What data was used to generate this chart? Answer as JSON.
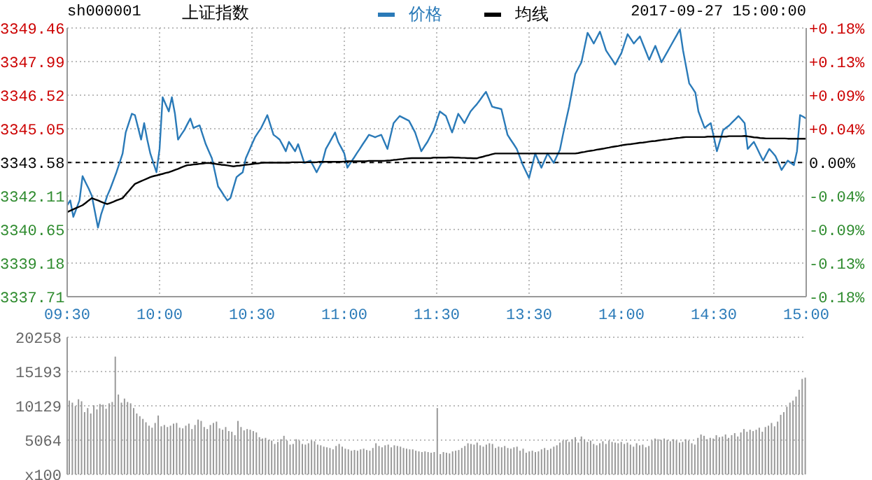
{
  "chart_data": [
    {
      "type": "line",
      "title": "上证指数",
      "annotations": [
        "sh000001",
        "2017-09-27 15:00:00"
      ],
      "legend": "top",
      "grid": true,
      "marker": "none",
      "line_style": "solid",
      "categories": [
        "09:30",
        null,
        null,
        null,
        null,
        null,
        null,
        null,
        null,
        null,
        null,
        null,
        null,
        null,
        null,
        null,
        null,
        null,
        null,
        null,
        null,
        null,
        null,
        null,
        null,
        null,
        null,
        null,
        null,
        null,
        "10:00",
        null,
        null,
        null,
        null,
        null,
        null,
        null,
        null,
        null,
        null,
        null,
        null,
        null,
        null,
        null,
        null,
        null,
        null,
        null,
        null,
        null,
        null,
        null,
        null,
        null,
        null,
        null,
        null,
        null,
        "10:30",
        null,
        null,
        null,
        null,
        null,
        null,
        null,
        null,
        null,
        null,
        null,
        null,
        null,
        null,
        null,
        null,
        null,
        null,
        null,
        null,
        null,
        null,
        null,
        null,
        null,
        null,
        null,
        null,
        null,
        "11:00",
        null,
        null,
        null,
        null,
        null,
        null,
        null,
        null,
        null,
        null,
        null,
        null,
        null,
        null,
        null,
        null,
        null,
        null,
        null,
        null,
        null,
        null,
        null,
        null,
        null,
        null,
        null,
        null,
        null,
        "11:30",
        null,
        null,
        null,
        null,
        null,
        null,
        null,
        null,
        null,
        null,
        null,
        null,
        null,
        null,
        null,
        null,
        null,
        null,
        null,
        null,
        null,
        null,
        null,
        null,
        null,
        null,
        null,
        null,
        null,
        "13:30",
        null,
        null,
        null,
        null,
        null,
        null,
        null,
        null,
        null,
        null,
        null,
        null,
        null,
        null,
        null,
        null,
        null,
        null,
        null,
        null,
        null,
        null,
        null,
        null,
        null,
        null,
        null,
        null,
        null,
        "14:00",
        null,
        null,
        null,
        null,
        null,
        null,
        null,
        null,
        null,
        null,
        null,
        null,
        null,
        null,
        null,
        null,
        null,
        null,
        null,
        null,
        null,
        null,
        null,
        null,
        null,
        null,
        null,
        null,
        null,
        "14:30",
        null,
        null,
        null,
        null,
        null,
        null,
        null,
        null,
        null,
        null,
        null,
        null,
        null,
        null,
        null,
        null,
        null,
        null,
        null,
        null,
        null,
        null,
        null,
        null,
        null,
        null,
        null,
        null,
        null,
        "15:00"
      ],
      "ylim": [
        3337.71,
        3349.46
      ],
      "yticks": [
        3337.71,
        3339.18,
        3340.65,
        3342.11,
        3343.58,
        3345.05,
        3346.52,
        3347.99,
        3349.46
      ],
      "y2lim": [
        -0.176,
        0.176
      ],
      "y2ticks": [
        {
          "value": -0.176,
          "label": "-0.18%"
        },
        {
          "value": -0.132,
          "label": "-0.13%"
        },
        {
          "value": -0.088,
          "label": "-0.09%"
        },
        {
          "value": -0.044,
          "label": "-0.04%"
        },
        {
          "value": 0,
          "label": "0.00%"
        },
        {
          "value": 0.044,
          "label": "+0.04%"
        },
        {
          "value": 0.088,
          "label": "+0.09%"
        },
        {
          "value": 0.132,
          "label": "+0.13%"
        },
        {
          "value": 0.176,
          "label": "+0.18%"
        }
      ],
      "ref_lines": [
        {
          "axis": "y",
          "value": 3343.58,
          "color": "#000000",
          "line_style": "dashed"
        }
      ],
      "series": [
        {
          "name": "价格",
          "color": "#2a7ab8",
          "values": [
            3341.71,
            3341.92,
            3341.2,
            3341.56,
            3341.92,
            3342.98,
            3342.7,
            3342.43,
            3342.12,
            3341.43,
            3340.73,
            3341.3,
            3341.71,
            3342.12,
            3342.43,
            3342.79,
            3343.15,
            3343.56,
            3343.97,
            3344.89,
            3345.3,
            3345.71,
            3345.65,
            3345.12,
            3344.58,
            3345.3,
            3344.58,
            3343.97,
            3343.56,
            3343.15,
            3344.17,
            3346.43,
            3346.12,
            3345.81,
            3346.43,
            3345.71,
            3344.58,
            3344.79,
            3344.99,
            3345.25,
            3345.5,
            3345.09,
            3345.15,
            3345.2,
            3344.79,
            3344.38,
            3344.07,
            3343.76,
            3343.15,
            3342.53,
            3342.33,
            3342.12,
            3341.92,
            3342.02,
            3342.48,
            3342.94,
            3343.05,
            3343.15,
            3343.76,
            3344.07,
            3344.38,
            3344.68,
            3344.89,
            3345.09,
            3345.37,
            3345.65,
            3345.22,
            3344.79,
            3344.69,
            3344.58,
            3344.33,
            3344.07,
            3344.48,
            3344.28,
            3344.07,
            3344.38,
            3343.97,
            3343.56,
            3343.61,
            3343.66,
            3343.41,
            3343.15,
            3343.41,
            3343.66,
            3344.17,
            3344.41,
            3344.65,
            3344.89,
            3344.48,
            3344.23,
            3343.97,
            3343.35,
            3343.56,
            3343.76,
            3343.97,
            3344.17,
            3344.38,
            3344.58,
            3344.79,
            3344.74,
            3344.68,
            3344.74,
            3344.79,
            3344.48,
            3344.17,
            3344.74,
            3345.3,
            3345.46,
            3345.61,
            3345.54,
            3345.47,
            3345.4,
            3345.15,
            3344.89,
            3344.48,
            3344.07,
            3344.28,
            3344.48,
            3344.74,
            3344.99,
            3345.4,
            3345.81,
            3345.71,
            3345.61,
            3345.25,
            3344.89,
            3345.3,
            3345.71,
            3345.51,
            3345.3,
            3345.56,
            3345.81,
            3345.97,
            3346.12,
            3346.3,
            3346.49,
            3346.67,
            3346.35,
            3346.02,
            3345.98,
            3345.95,
            3345.91,
            3345.35,
            3344.79,
            3344.58,
            3344.38,
            3344.17,
            3343.82,
            3343.46,
            3343.18,
            3342.9,
            3343.44,
            3343.97,
            3343.66,
            3343.35,
            3343.66,
            3343.97,
            3343.77,
            3343.56,
            3343.85,
            3344.13,
            3344.79,
            3345.41,
            3346.02,
            3346.74,
            3347.45,
            3347.71,
            3347.96,
            3348.61,
            3349.25,
            3349.02,
            3348.78,
            3349.04,
            3349.3,
            3348.89,
            3348.48,
            3348.27,
            3348.07,
            3347.86,
            3348.12,
            3348.37,
            3348.78,
            3349.19,
            3348.99,
            3348.78,
            3348.94,
            3349.09,
            3348.75,
            3348.41,
            3348.07,
            3348.38,
            3348.68,
            3348.32,
            3347.96,
            3348.2,
            3348.44,
            3348.68,
            3348.92,
            3349.16,
            3349.4,
            3348.48,
            3347.76,
            3347.04,
            3346.84,
            3346.63,
            3345.81,
            3345.45,
            3345.09,
            3345.2,
            3345.3,
            3344.69,
            3344.07,
            3344.53,
            3344.99,
            3345.1,
            3345.2,
            3345.34,
            3345.47,
            3345.61,
            3345.46,
            3345.3,
            3344.17,
            3344.33,
            3344.48,
            3344.21,
            3343.93,
            3343.66,
            3343.92,
            3344.17,
            3344.02,
            3343.86,
            3343.56,
            3343.25,
            3343.46,
            3343.66,
            3343.56,
            3343.46,
            3344.07,
            3345.65,
            3345.58,
            3345.5
          ]
        },
        {
          "name": "均线",
          "color": "#000000",
          "values": [
            3341.41,
            3341.47,
            3341.53,
            3341.59,
            3341.65,
            3341.71,
            3341.81,
            3341.92,
            3342.02,
            3341.97,
            3341.92,
            3341.86,
            3341.81,
            3341.76,
            3341.81,
            3341.86,
            3341.92,
            3341.97,
            3342.02,
            3342.18,
            3342.33,
            3342.49,
            3342.64,
            3342.7,
            3342.76,
            3342.82,
            3342.88,
            3342.94,
            3342.98,
            3343.01,
            3343.05,
            3343.08,
            3343.12,
            3343.15,
            3343.2,
            3343.25,
            3343.3,
            3343.36,
            3343.41,
            3343.46,
            3343.47,
            3343.49,
            3343.5,
            3343.52,
            3343.53,
            3343.55,
            3343.56,
            3343.54,
            3343.52,
            3343.5,
            3343.48,
            3343.47,
            3343.45,
            3343.43,
            3343.41,
            3343.43,
            3343.44,
            3343.46,
            3343.48,
            3343.49,
            3343.51,
            3343.53,
            3343.54,
            3343.56,
            3343.57,
            3343.57,
            3343.57,
            3343.57,
            3343.57,
            3343.57,
            3343.57,
            3343.57,
            3343.57,
            3343.59,
            3343.59,
            3343.59,
            3343.59,
            3343.59,
            3343.59,
            3343.59,
            3343.59,
            3343.59,
            3343.61,
            3343.61,
            3343.61,
            3343.61,
            3343.61,
            3343.61,
            3343.61,
            3343.61,
            3343.62,
            3343.63,
            3343.63,
            3343.63,
            3343.63,
            3343.63,
            3343.63,
            3343.63,
            3343.65,
            3343.65,
            3343.65,
            3343.65,
            3343.65,
            3343.65,
            3343.66,
            3343.67,
            3343.69,
            3343.7,
            3343.72,
            3343.73,
            3343.75,
            3343.76,
            3343.77,
            3343.77,
            3343.77,
            3343.77,
            3343.77,
            3343.77,
            3343.77,
            3343.79,
            3343.79,
            3343.79,
            3343.79,
            3343.79,
            3343.8,
            3343.8,
            3343.79,
            3343.79,
            3343.78,
            3343.78,
            3343.77,
            3343.77,
            3343.76,
            3343.76,
            3343.8,
            3343.83,
            3343.87,
            3343.9,
            3343.94,
            3343.97,
            3343.97,
            3343.97,
            3343.97,
            3343.97,
            3343.97,
            3343.97,
            3343.97,
            3343.97,
            3343.97,
            3343.97,
            3343.97,
            3343.97,
            3343.97,
            3343.97,
            3343.97,
            3343.97,
            3343.97,
            3343.97,
            3343.97,
            3343.97,
            3343.97,
            3343.97,
            3343.97,
            3343.97,
            3343.97,
            3343.97,
            3343.99,
            3344.02,
            3344.04,
            3344.07,
            3344.09,
            3344.11,
            3344.14,
            3344.16,
            3344.18,
            3344.21,
            3344.23,
            3344.26,
            3344.28,
            3344.3,
            3344.33,
            3344.35,
            3344.37,
            3344.38,
            3344.4,
            3344.42,
            3344.44,
            3344.45,
            3344.47,
            3344.49,
            3344.51,
            3344.52,
            3344.54,
            3344.56,
            3344.58,
            3344.59,
            3344.61,
            3344.63,
            3344.65,
            3344.66,
            3344.68,
            3344.69,
            3344.69,
            3344.69,
            3344.69,
            3344.69,
            3344.69,
            3344.69,
            3344.71,
            3344.71,
            3344.71,
            3344.71,
            3344.71,
            3344.71,
            3344.71,
            3344.73,
            3344.73,
            3344.73,
            3344.73,
            3344.73,
            3344.74,
            3344.72,
            3344.7,
            3344.68,
            3344.67,
            3344.65,
            3344.64,
            3344.63,
            3344.63,
            3344.63,
            3344.63,
            3344.63,
            3344.63,
            3344.63,
            3344.62,
            3344.62,
            3344.62,
            3344.62,
            3344.62,
            3344.62,
            3344.62
          ]
        }
      ]
    },
    {
      "type": "bar",
      "grid": "y",
      "tick_labels": "y",
      "color": "#999999",
      "categories": [
        null,
        null,
        null,
        null,
        null,
        null,
        null,
        null,
        null,
        null,
        null,
        null,
        null,
        null,
        null,
        null,
        null,
        null,
        null,
        null,
        null,
        null,
        null,
        null,
        null,
        null,
        null,
        null,
        null,
        null,
        null,
        null,
        null,
        null,
        null,
        null,
        null,
        null,
        null,
        null,
        null,
        null,
        null,
        null,
        null,
        null,
        null,
        null,
        null,
        null,
        null,
        null,
        null,
        null,
        null,
        null,
        null,
        null,
        null,
        null,
        null,
        null,
        null,
        null,
        null,
        null,
        null,
        null,
        null,
        null,
        null,
        null,
        null,
        null,
        null,
        null,
        null,
        null,
        null,
        null,
        null,
        null,
        null,
        null,
        null,
        null,
        null,
        null,
        null,
        null,
        null,
        null,
        null,
        null,
        null,
        null,
        null,
        null,
        null,
        null,
        null,
        null,
        null,
        null,
        null,
        null,
        null,
        null,
        null,
        null,
        null,
        null,
        null,
        null,
        null,
        null,
        null,
        null,
        null,
        null,
        null,
        null,
        null,
        null,
        null,
        null,
        null,
        null,
        null,
        null,
        null,
        null,
        null,
        null,
        null,
        null,
        null,
        null,
        null,
        null,
        null,
        null,
        null,
        null,
        null,
        null,
        null,
        null,
        null,
        null,
        null,
        null,
        null,
        null,
        null,
        null,
        null,
        null,
        null,
        null,
        null,
        null,
        null,
        null,
        null,
        null,
        null,
        null,
        null,
        null,
        null,
        null,
        null,
        null,
        null,
        null,
        null,
        null,
        null,
        null,
        null,
        null,
        null,
        null,
        null,
        null,
        null,
        null,
        null,
        null,
        null,
        null,
        null,
        null,
        null,
        null,
        null,
        null,
        null,
        null,
        null,
        null,
        null,
        null,
        null,
        null,
        null,
        null,
        null,
        null,
        null,
        null,
        null,
        null,
        null,
        null,
        null,
        null,
        null,
        null,
        null,
        null,
        null,
        null,
        null,
        null,
        null,
        null,
        null,
        null,
        null,
        null,
        null,
        null,
        null,
        null,
        null,
        null,
        null,
        null,
        null
      ],
      "ylim": [
        0,
        20258
      ],
      "yticks": [
        {
          "value": 0,
          "label": "x100"
        },
        5064,
        10129,
        15193,
        20258
      ],
      "values": [
        10900,
        10600,
        10100,
        11100,
        10800,
        9200,
        9800,
        9000,
        10200,
        9600,
        10400,
        10300,
        9700,
        10500,
        10700,
        17400,
        11800,
        10600,
        11200,
        10700,
        10500,
        9800,
        9000,
        8600,
        8200,
        7700,
        7200,
        6900,
        7600,
        8700,
        7100,
        7300,
        7000,
        7200,
        7500,
        7600,
        6900,
        6800,
        7200,
        7500,
        6700,
        7300,
        8100,
        7900,
        7000,
        6700,
        7300,
        7600,
        7800,
        6800,
        6600,
        7000,
        6400,
        6300,
        5800,
        7900,
        7000,
        6500,
        6700,
        6600,
        6400,
        6200,
        5500,
        5300,
        5400,
        5100,
        5000,
        4500,
        4800,
        5200,
        5700,
        5000,
        4400,
        4500,
        5200,
        5000,
        4500,
        4400,
        4600,
        5000,
        4900,
        4400,
        4300,
        4100,
        4000,
        3900,
        3700,
        4200,
        4500,
        4100,
        3800,
        3700,
        3500,
        3600,
        3500,
        3700,
        3800,
        3600,
        3500,
        3900,
        4600,
        4200,
        4000,
        4300,
        4400,
        4000,
        4300,
        4200,
        4100,
        3900,
        3800,
        3700,
        3700,
        3500,
        3400,
        3300,
        3400,
        3300,
        3200,
        3300,
        9800,
        3000,
        3300,
        3200,
        3100,
        3400,
        3500,
        3600,
        3900,
        4200,
        4600,
        4500,
        4400,
        4700,
        4300,
        4100,
        4400,
        4600,
        4500,
        3900,
        4100,
        4000,
        4200,
        3900,
        3800,
        4000,
        4100,
        3500,
        3800,
        3200,
        3400,
        3500,
        3300,
        3400,
        3700,
        3900,
        3600,
        3800,
        4100,
        4300,
        4700,
        5000,
        5100,
        4800,
        5200,
        5500,
        4700,
        5600,
        5200,
        4800,
        5000,
        4500,
        4300,
        4600,
        4900,
        4500,
        5000,
        4800,
        4700,
        4600,
        4800,
        4500,
        4700,
        4400,
        4100,
        4600,
        4300,
        4400,
        4000,
        4200,
        5000,
        5300,
        5200,
        5100,
        5300,
        5100,
        4900,
        5200,
        5000,
        4700,
        4800,
        5200,
        5000,
        4600,
        4400,
        5400,
        5900,
        5700,
        5200,
        5400,
        5300,
        5800,
        5500,
        5600,
        5900,
        5400,
        5800,
        6100,
        5600,
        6200,
        6700,
        6300,
        6600,
        6400,
        6600,
        6900,
        6300,
        7000,
        7200,
        7600,
        7100,
        7800,
        8800,
        9200,
        10000,
        10600,
        10900,
        11500,
        12500,
        14100,
        14300
      ]
    }
  ]
}
